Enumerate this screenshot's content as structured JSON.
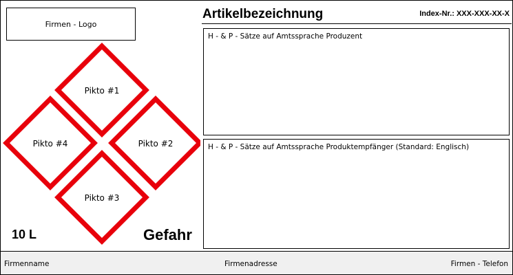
{
  "logo_text": "Firmen - Logo",
  "title": "Artikelbezeichnung",
  "index_number": "Index-Nr.: XXX-XXX-XX-X",
  "hp_producer": "H - & P - Sätze auf Amtssprache Produzent",
  "hp_recipient": "H - & P - Sätze auf Amtssprache Produktempfänger (Standard: Englisch)",
  "pictograms": [
    "Pikto #1",
    "Pikto #2",
    "Pikto #3",
    "Pikto #4"
  ],
  "hazard_color": "#e8000b",
  "volume": "10 L",
  "signal_word": "Gefahr",
  "footer": {
    "company_name": "Firmenname",
    "company_address": "Firmenadresse",
    "company_phone": "Firmen - Telefon"
  }
}
